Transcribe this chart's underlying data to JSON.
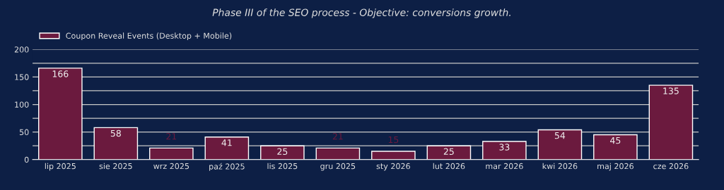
{
  "chart_data": {
    "type": "bar",
    "title": "Phase III of the SEO process - Objective: conversions growth.",
    "categories": [
      "lip 2025",
      "sie 2025",
      "wrz 2025",
      "paź 2025",
      "lis 2025",
      "gru 2025",
      "sty 2026",
      "lut 2026",
      "mar 2026",
      "kwi 2026",
      "maj 2026",
      "cze 2026"
    ],
    "series": [
      {
        "name": "Coupon Reveal Events (Desktop + Mobile)",
        "color": "#6b1a3e",
        "values": [
          166,
          58,
          21,
          41,
          25,
          21,
          15,
          25,
          33,
          54,
          45,
          135
        ]
      }
    ],
    "ylim": [
      0,
      200
    ],
    "yticks": [
      0,
      {
        "value": 25,
        "label": null
      },
      50,
      {
        "value": 75,
        "label": null
      },
      100,
      {
        "value": 125,
        "label": null
      },
      150,
      {
        "value": 175,
        "label": null
      },
      200
    ],
    "grid": "y",
    "legend": "top left",
    "data_labels": true
  }
}
